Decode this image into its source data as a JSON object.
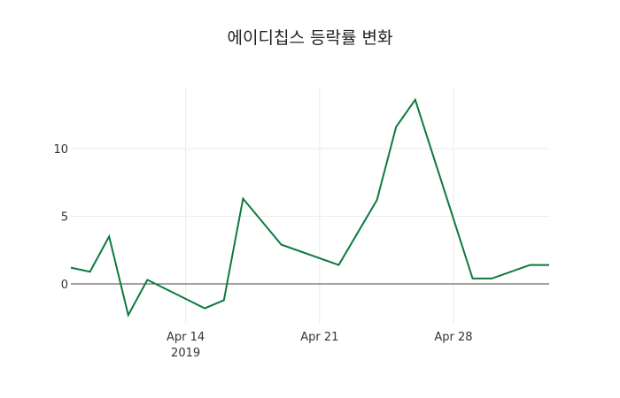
{
  "chart_data": {
    "type": "line",
    "title": "에이디칩스 등락률 변화",
    "xlabel": "",
    "ylabel": "",
    "x": [
      "2019-04-08",
      "2019-04-09",
      "2019-04-10",
      "2019-04-11",
      "2019-04-12",
      "2019-04-15",
      "2019-04-16",
      "2019-04-17",
      "2019-04-19",
      "2019-04-22",
      "2019-04-24",
      "2019-04-25",
      "2019-04-26",
      "2019-04-29",
      "2019-04-30",
      "2019-05-02",
      "2019-05-03"
    ],
    "series": [
      {
        "name": "등락률",
        "color": "#0b7a3e",
        "values": [
          1.2,
          0.9,
          3.5,
          -2.3,
          0.3,
          -1.8,
          -1.2,
          6.3,
          2.9,
          1.4,
          6.2,
          11.6,
          13.6,
          0.4,
          0.4,
          1.4,
          1.4
        ]
      }
    ],
    "xlim": [
      "2019-04-08",
      "2019-05-03"
    ],
    "ylim": [
      -2.94,
      14.57
    ],
    "x_ticks": [
      {
        "date": "2019-04-14",
        "label": "Apr 14",
        "sublabel": "2019"
      },
      {
        "date": "2019-04-21",
        "label": "Apr 21",
        "sublabel": ""
      },
      {
        "date": "2019-04-28",
        "label": "Apr 28",
        "sublabel": ""
      }
    ],
    "y_ticks": [
      0,
      5,
      10
    ],
    "y_tick_labels": [
      "0",
      "5",
      "10"
    ],
    "grid": true,
    "zero_line": true,
    "legend": "none"
  }
}
